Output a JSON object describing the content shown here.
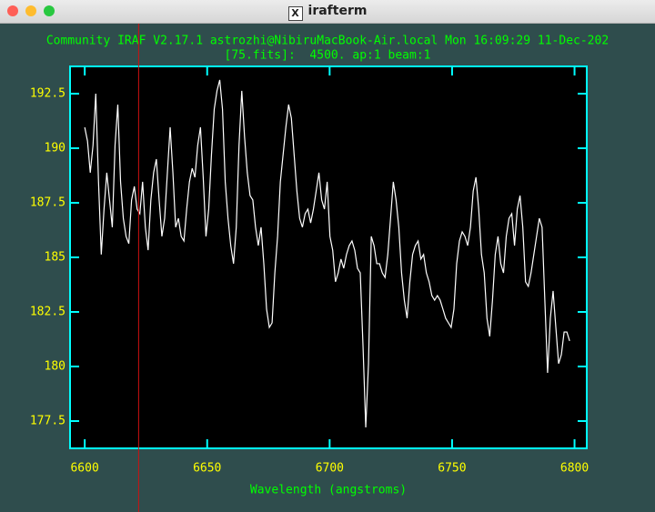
{
  "window": {
    "title": "irafterm"
  },
  "chart_data": {
    "type": "line",
    "title": "Community IRAF V2.17.1 astrozhi@NibiruMacBook-Air.local Mon 16:09:29 11-Dec-202",
    "subtitle": "[75.fits]:  4500. ap:1 beam:1",
    "xlabel": "Wavelength (angstroms)",
    "xlim": [
      6594,
      6805
    ],
    "ylim": [
      176.25,
      193.75
    ],
    "xticks": [
      6600,
      6650,
      6700,
      6750,
      6800
    ],
    "yticks": [
      177.5,
      180,
      182.5,
      185,
      187.5,
      190,
      192.5
    ],
    "cursor_x": 6622,
    "series": [
      {
        "color": "#ffffff",
        "x": [
          6600,
          6601.125,
          6602.25,
          6603.375,
          6604.5,
          6605.625,
          6606.75,
          6607.875,
          6609,
          6610.125,
          6611.25,
          6612.375,
          6613.5,
          6614.625,
          6615.75,
          6616.875,
          6618,
          6619.125,
          6620.25,
          6621.375,
          6622.5,
          6623.625,
          6624.75,
          6625.875,
          6627,
          6628.125,
          6629.25,
          6630.375,
          6631.5,
          6632.625,
          6633.75,
          6634.875,
          6636,
          6637.125,
          6638.25,
          6639.375,
          6640.5,
          6641.625,
          6642.75,
          6643.875,
          6645,
          6646.125,
          6647.25,
          6648.375,
          6649.5,
          6650.625,
          6651.75,
          6652.875,
          6654,
          6655.125,
          6656.25,
          6657.375,
          6658.5,
          6659.625,
          6660.75,
          6661.875,
          6663,
          6664.125,
          6665.25,
          6666.375,
          6667.5,
          6668.625,
          6669.75,
          6670.875,
          6672,
          6673.125,
          6674.25,
          6675.375,
          6676.5,
          6677.625,
          6678.75,
          6679.875,
          6681,
          6682.125,
          6683.25,
          6684.375,
          6685.5,
          6686.625,
          6687.75,
          6688.875,
          6690,
          6691.125,
          6692.25,
          6693.375,
          6694.5,
          6695.625,
          6696.75,
          6697.875,
          6699,
          6700.125,
          6701.25,
          6702.375,
          6703.5,
          6704.625,
          6705.75,
          6706.875,
          6708,
          6709.125,
          6710.25,
          6711.375,
          6712.5,
          6713.625,
          6714.75,
          6715.875,
          6717,
          6718.125,
          6719.25,
          6720.375,
          6721.5,
          6722.625,
          6723.75,
          6724.875,
          6726,
          6727.125,
          6728.25,
          6729.375,
          6730.5,
          6731.625,
          6732.75,
          6733.875,
          6735,
          6736.125,
          6737.25,
          6738.375,
          6739.5,
          6740.625,
          6741.75,
          6742.875,
          6744,
          6745.125,
          6746.25,
          6747.375,
          6748.5,
          6749.625,
          6750.75,
          6751.875,
          6753,
          6754.125,
          6755.25,
          6756.375,
          6757.5,
          6758.625,
          6759.75,
          6760.875,
          6762,
          6763.125,
          6764.25,
          6765.375,
          6766.5,
          6767.625,
          6768.75,
          6769.875,
          6771,
          6772.125,
          6773.25,
          6774.375,
          6775.5,
          6776.625,
          6777.75,
          6778.875,
          6780,
          6781.125,
          6782.25,
          6783.375,
          6784.5,
          6785.625,
          6786.75,
          6787.875,
          6789,
          6790.125,
          6791.25,
          6792.375,
          6793.5,
          6794.625,
          6795.75,
          6796.875,
          6798
        ],
        "values": [
          190.96,
          190.33,
          188.88,
          190.13,
          192.5,
          188.46,
          185.13,
          187.21,
          188.88,
          187.63,
          186.38,
          190.13,
          192.0,
          188.46,
          186.79,
          185.96,
          185.63,
          187.63,
          188.25,
          187.21,
          187.0,
          188.46,
          186.38,
          185.33,
          187.63,
          188.88,
          189.5,
          187.63,
          185.96,
          186.79,
          188.88,
          190.96,
          188.88,
          186.38,
          186.79,
          185.96,
          185.75,
          187.21,
          188.46,
          189.08,
          188.67,
          190.13,
          190.96,
          188.67,
          185.96,
          187.21,
          189.71,
          191.79,
          192.63,
          193.13,
          191.79,
          188.46,
          186.79,
          185.54,
          184.71,
          186.38,
          190.13,
          192.63,
          190.54,
          188.88,
          187.83,
          187.63,
          186.38,
          185.54,
          186.38,
          184.71,
          182.63,
          181.79,
          182.0,
          184.29,
          185.96,
          188.46,
          189.71,
          190.96,
          192.0,
          191.38,
          189.71,
          188.04,
          186.79,
          186.38,
          187.0,
          187.21,
          186.58,
          187.21,
          188.04,
          188.88,
          187.63,
          187.21,
          188.46,
          185.96,
          185.33,
          183.88,
          184.29,
          184.92,
          184.5,
          185.13,
          185.54,
          185.75,
          185.33,
          184.5,
          184.29,
          180.96,
          177.21,
          180.13,
          185.96,
          185.54,
          184.71,
          184.71,
          184.29,
          184.08,
          185.13,
          186.79,
          188.46,
          187.63,
          186.38,
          184.29,
          183.04,
          182.21,
          183.88,
          185.13,
          185.54,
          185.75,
          184.92,
          185.13,
          184.29,
          183.88,
          183.25,
          183.04,
          183.25,
          183.04,
          182.63,
          182.21,
          182.0,
          181.79,
          182.63,
          184.71,
          185.75,
          186.17,
          185.96,
          185.54,
          186.38,
          188.04,
          188.67,
          187.21,
          185.13,
          184.29,
          182.21,
          181.38,
          183.04,
          185.13,
          185.96,
          184.71,
          184.29,
          185.96,
          186.79,
          187.0,
          185.54,
          187.21,
          187.83,
          186.38,
          183.88,
          183.67,
          184.29,
          185.13,
          185.96,
          186.79,
          186.38,
          183.04,
          179.71,
          182.21,
          183.46,
          181.79,
          180.13,
          180.54,
          181.58,
          181.58,
          181.17
        ]
      }
    ]
  }
}
